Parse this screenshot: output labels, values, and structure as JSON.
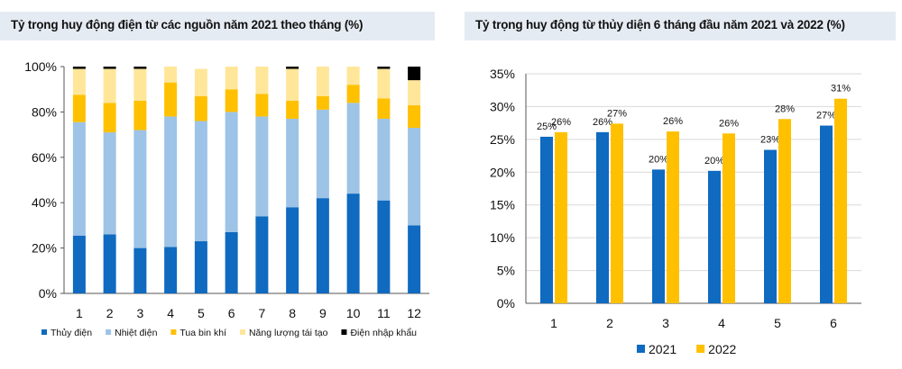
{
  "chart_data": [
    {
      "type": "bar",
      "stacked": true,
      "title": "Tỷ trọng huy động điện từ các nguồn năm 2021 theo tháng (%)",
      "categories": [
        "1",
        "2",
        "3",
        "4",
        "5",
        "6",
        "7",
        "8",
        "9",
        "10",
        "11",
        "12"
      ],
      "ylim": [
        0,
        100
      ],
      "yticks": [
        "0%",
        "20%",
        "40%",
        "60%",
        "80%",
        "100%"
      ],
      "series": [
        {
          "name": "Thủy điện",
          "color": "#0f6ac0",
          "values": [
            25.5,
            26,
            20,
            20.5,
            23,
            27,
            34,
            38,
            42,
            44,
            41,
            30
          ]
        },
        {
          "name": "Nhiệt điện",
          "color": "#9dc3e6",
          "values": [
            50,
            45,
            52,
            57.5,
            53,
            53,
            44,
            39,
            39,
            40,
            36,
            43
          ]
        },
        {
          "name": "Tua bin khí",
          "color": "#ffc000",
          "values": [
            12,
            13,
            13,
            15,
            11,
            10,
            10,
            8,
            6,
            8,
            9,
            10
          ]
        },
        {
          "name": "Năng lượng tái tạo",
          "color": "#ffe699",
          "values": [
            11.5,
            15,
            14,
            7,
            12,
            10,
            12,
            14,
            13,
            8,
            13,
            11
          ]
        },
        {
          "name": "Điện nhập khẩu",
          "color": "#000000",
          "values": [
            1,
            1,
            1,
            0,
            0,
            0,
            0,
            1,
            0,
            0,
            1,
            6
          ]
        }
      ],
      "legend_position": "bottom",
      "grid": false
    },
    {
      "type": "bar",
      "title": "Tỷ trọng huy động từ thủy diện 6 tháng đầu năm 2021 và 2022 (%)",
      "categories": [
        "1",
        "2",
        "3",
        "4",
        "5",
        "6"
      ],
      "ylim": [
        0,
        35
      ],
      "yticks": [
        "0%",
        "5%",
        "10%",
        "15%",
        "20%",
        "25%",
        "30%",
        "35%"
      ],
      "series": [
        {
          "name": "2021",
          "color": "#0f6ac0",
          "values": [
            25.4,
            26.1,
            20.4,
            20.2,
            23.4,
            27.1
          ],
          "labels": [
            "25%",
            "26%",
            "20%",
            "20%",
            "23%",
            "27%"
          ]
        },
        {
          "name": "2022",
          "color": "#ffc000",
          "values": [
            26.1,
            27.4,
            26.2,
            25.9,
            28.1,
            31.2
          ],
          "labels": [
            "26%",
            "27%",
            "26%",
            "26%",
            "28%",
            "31%"
          ]
        }
      ],
      "legend_position": "bottom",
      "grid": true
    }
  ]
}
